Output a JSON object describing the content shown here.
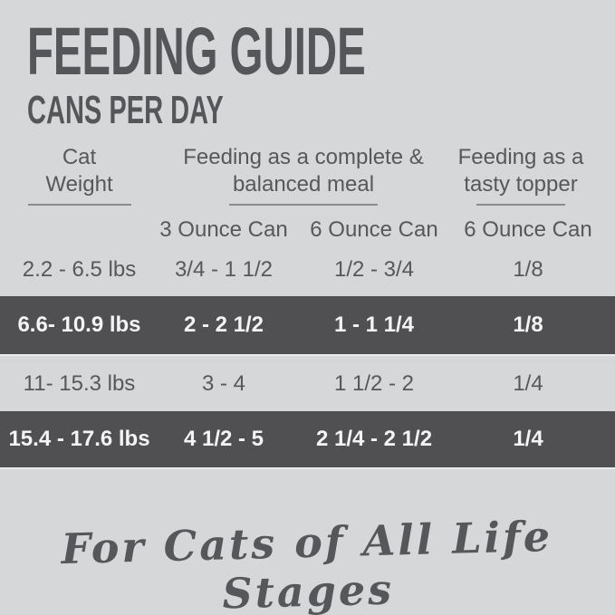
{
  "title": "FEEDING GUIDE",
  "subtitle": "CANS PER DAY",
  "table": {
    "column_groups": [
      {
        "label": "Cat Weight"
      },
      {
        "label": "Feeding as a complete & balanced meal"
      },
      {
        "label": "Feeding as a tasty topper"
      }
    ],
    "can_headers": [
      "3 Ounce Can",
      "6 Ounce Can",
      "6 Ounce Can"
    ],
    "rows": [
      {
        "weight": "2.2 - 6.5 lbs",
        "meal_3oz": "3/4 - 1 1/2",
        "meal_6oz": "1/2 - 3/4",
        "topper_6oz": "1/8",
        "highlighted": false
      },
      {
        "weight": "6.6- 10.9 lbs",
        "meal_3oz": "2 - 2 1/2",
        "meal_6oz": "1 - 1 1/4",
        "topper_6oz": "1/8",
        "highlighted": true
      },
      {
        "weight": "11- 15.3 lbs",
        "meal_3oz": "3 - 4",
        "meal_6oz": "1 1/2 - 2",
        "topper_6oz": "1/4",
        "highlighted": false
      },
      {
        "weight": "15.4 - 17.6 lbs",
        "meal_3oz": "4 1/2 - 5",
        "meal_6oz": "2 1/4 - 2 1/2",
        "topper_6oz": "1/4",
        "highlighted": true
      }
    ]
  },
  "footer": {
    "tagline": "For Cats of All Life Stages"
  },
  "colors": {
    "background": "#d6d7d8",
    "highlight_band": "#505052",
    "text": "#57585a",
    "band_text": "#f4f4f5",
    "underline": "#8b8c8e"
  }
}
